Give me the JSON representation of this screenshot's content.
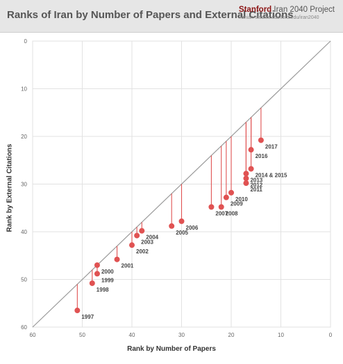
{
  "header": {
    "title": "Ranks of Iran by Number of Papers and External Citations",
    "brand_stanford": "Stanford",
    "brand_project": "Iran 2040 Project",
    "brand_url": "iranian-studies.stanford.edu/iran2040"
  },
  "colors": {
    "point": "#e05252",
    "stem": "#e05252",
    "diagonal": "#999999",
    "grid": "#e2e2e2",
    "header_bg": "#e6e6e6",
    "brand": "#8c1515"
  },
  "chart_data": {
    "type": "scatter",
    "title": "Ranks of Iran by Number of Papers and External Citations",
    "xlabel": "Rank by Number of Papers",
    "ylabel": "Rank by External Citations",
    "xlim": [
      60,
      0
    ],
    "ylim": [
      0,
      60
    ],
    "x_reversed": true,
    "y_reversed": true,
    "x_ticks": [
      60,
      50,
      40,
      30,
      20,
      10,
      0
    ],
    "y_ticks": [
      0,
      10,
      20,
      30,
      40,
      50,
      60
    ],
    "grid": true,
    "diagonal_reference": true,
    "points": [
      {
        "label": "1997",
        "x": 51,
        "y": 56.5
      },
      {
        "label": "1998",
        "x": 48,
        "y": 50.8
      },
      {
        "label": "1999",
        "x": 47,
        "y": 48.8
      },
      {
        "label": "2000",
        "x": 47,
        "y": 47
      },
      {
        "label": "2001",
        "x": 43,
        "y": 45.8
      },
      {
        "label": "2002",
        "x": 40,
        "y": 42.8
      },
      {
        "label": "2003",
        "x": 39,
        "y": 40.8
      },
      {
        "label": "2004",
        "x": 38,
        "y": 39.8
      },
      {
        "label": "2005",
        "x": 32,
        "y": 38.8
      },
      {
        "label": "2006",
        "x": 30,
        "y": 37.8
      },
      {
        "label": "2007",
        "x": 24,
        "y": 34.8
      },
      {
        "label": "2008",
        "x": 22,
        "y": 34.8
      },
      {
        "label": "2009",
        "x": 21,
        "y": 32.8
      },
      {
        "label": "2010",
        "x": 20,
        "y": 31.8
      },
      {
        "label": "2011",
        "x": 17,
        "y": 29.8
      },
      {
        "label": "2012",
        "x": 17,
        "y": 28.8
      },
      {
        "label": "2013",
        "x": 17,
        "y": 27.8
      },
      {
        "label": "2014 & 2015",
        "x": 16,
        "y": 26.8
      },
      {
        "label": "2016",
        "x": 16,
        "y": 22.8
      },
      {
        "label": "2017",
        "x": 14,
        "y": 20.8
      }
    ]
  }
}
